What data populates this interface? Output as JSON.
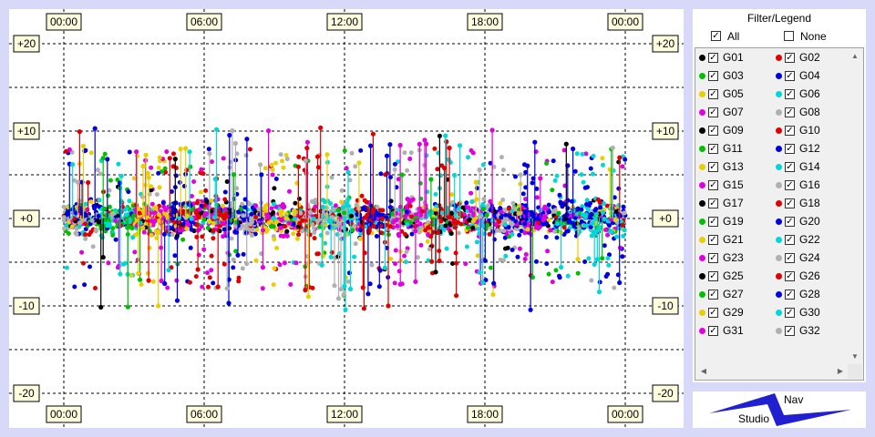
{
  "chart_data": {
    "type": "scatter",
    "x_ticks": [
      "00:00",
      "06:00",
      "12:00",
      "18:00",
      "00:00"
    ],
    "y_ticks": [
      "+20",
      "+10",
      "+0",
      "-10",
      "-20"
    ],
    "ylim": [
      -20,
      20
    ],
    "xlim": [
      0,
      24
    ],
    "grid": true,
    "grid_style": "dashed",
    "series": [
      {
        "name": "G01",
        "color": "#000000"
      },
      {
        "name": "G02",
        "color": "#e00000"
      },
      {
        "name": "G03",
        "color": "#00c000"
      },
      {
        "name": "G04",
        "color": "#0000e0"
      },
      {
        "name": "G05",
        "color": "#e8d000"
      },
      {
        "name": "G06",
        "color": "#00d8d8"
      },
      {
        "name": "G07",
        "color": "#e000e0"
      },
      {
        "name": "G08",
        "color": "#b0b0b0"
      },
      {
        "name": "G09",
        "color": "#000000"
      },
      {
        "name": "G10",
        "color": "#e00000"
      },
      {
        "name": "G11",
        "color": "#00c000"
      },
      {
        "name": "G12",
        "color": "#0000e0"
      },
      {
        "name": "G13",
        "color": "#e8d000"
      },
      {
        "name": "G14",
        "color": "#00d8d8"
      },
      {
        "name": "G15",
        "color": "#e000e0"
      },
      {
        "name": "G16",
        "color": "#b0b0b0"
      },
      {
        "name": "G17",
        "color": "#000000"
      },
      {
        "name": "G18",
        "color": "#e00000"
      },
      {
        "name": "G19",
        "color": "#00c000"
      },
      {
        "name": "G20",
        "color": "#0000e0"
      },
      {
        "name": "G21",
        "color": "#e8d000"
      },
      {
        "name": "G22",
        "color": "#00d8d8"
      },
      {
        "name": "G23",
        "color": "#e000e0"
      },
      {
        "name": "G24",
        "color": "#b0b0b0"
      },
      {
        "name": "G25",
        "color": "#000000"
      },
      {
        "name": "G26",
        "color": "#e00000"
      },
      {
        "name": "G27",
        "color": "#00c000"
      },
      {
        "name": "G28",
        "color": "#0000e0"
      },
      {
        "name": "G29",
        "color": "#e8d000"
      },
      {
        "name": "G30",
        "color": "#00d8d8"
      },
      {
        "name": "G31",
        "color": "#e000e0"
      },
      {
        "name": "G32",
        "color": "#b0b0b0"
      }
    ]
  },
  "legend": {
    "title": "Filter/Legend",
    "all_label": "All",
    "all_checked": true,
    "none_label": "None",
    "none_checked": false,
    "check_mark": "✓"
  },
  "navstudio": {
    "nav_label": "Nav",
    "studio_label": "Studio",
    "colors": {
      "primary": "#2020d0"
    }
  },
  "scroll": {
    "up": "▲",
    "down": "▼",
    "left": "◀",
    "right": "▶"
  }
}
